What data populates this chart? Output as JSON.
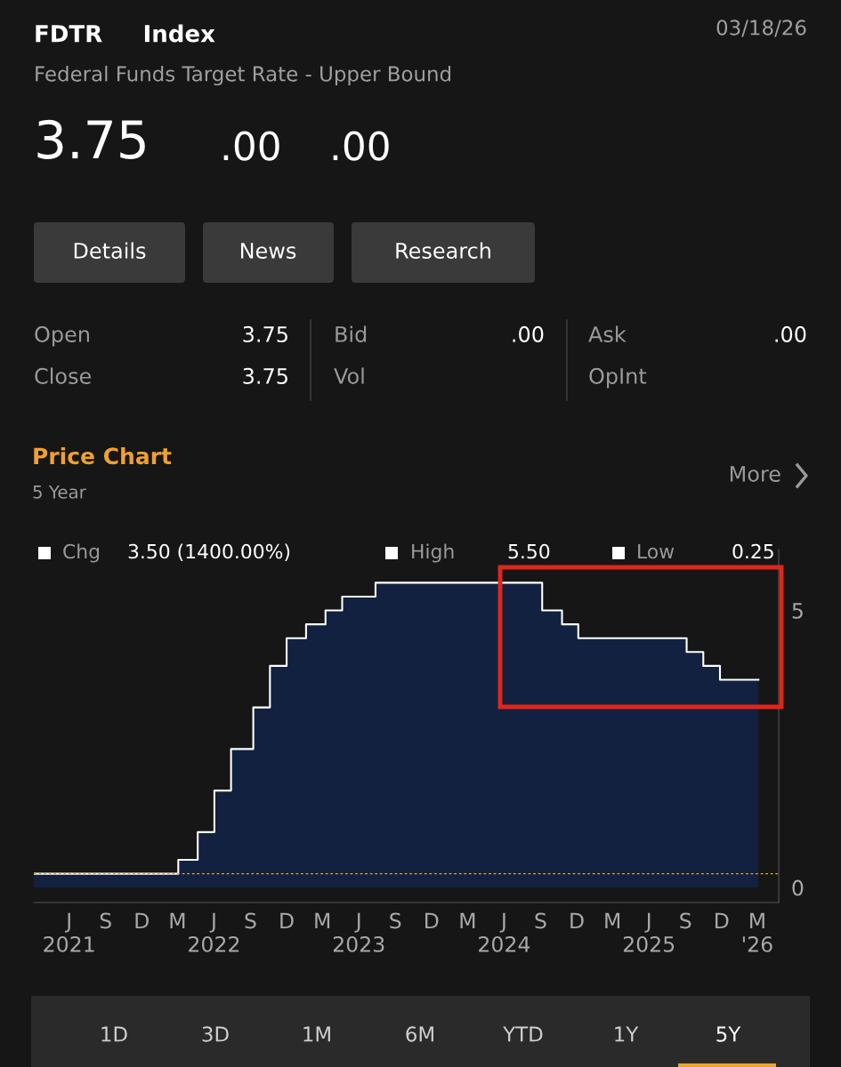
{
  "chart_data": {
    "type": "area",
    "title": "FDTR     Index",
    "subtitle": "Federal Funds Target Rate - Upper Bound",
    "annotations": [
      "03/18/26",
      "3.75",
      ".00",
      ".00",
      "Details",
      "News",
      "Research",
      "Open",
      "3.75",
      "Close",
      "3.75",
      "Bid",
      ".00",
      "Vol",
      "Ask",
      ".00",
      "OpInt",
      "Price Chart",
      "5 Year",
      "More",
      "Chg",
      "3.50 (1400.00%)",
      "High",
      "5.50",
      "Low",
      "0.25",
      "1D",
      "3D",
      "1M",
      "6M",
      "YTD",
      "1Y",
      "5Y"
    ],
    "x": [
      "2021-03-18",
      "2022-03-17",
      "2022-05-05",
      "2022-06-16",
      "2022-07-28",
      "2022-09-22",
      "2022-11-03",
      "2022-12-15",
      "2023-02-02",
      "2023-03-23",
      "2023-05-04",
      "2023-07-27",
      "2024-09-19",
      "2024-11-08",
      "2024-12-19",
      "2025-09-18",
      "2025-10-30",
      "2025-12-11",
      "2026-03-18"
    ],
    "series": [
      {
        "color": "#12213f",
        "values": [
          0.25,
          0.5,
          1.0,
          1.75,
          2.5,
          3.25,
          4.0,
          4.5,
          4.75,
          5.0,
          5.25,
          5.5,
          5.0,
          4.75,
          4.5,
          4.25,
          4.0,
          3.75,
          3.75
        ]
      },
      {
        "type": "step",
        "color": "#ffffff",
        "values": [
          0.25,
          0.5,
          1.0,
          1.75,
          2.5,
          3.25,
          4.0,
          4.5,
          4.75,
          5.0,
          5.25,
          5.5,
          5.0,
          4.75,
          4.5,
          4.25,
          4.0,
          3.75,
          3.75
        ]
      }
    ],
    "xlim": [
      "2021-03-18",
      "2026-05-08"
    ],
    "xticks": [
      {
        "value": "2021-06-15",
        "label": "J\n2021"
      },
      {
        "value": "2021-09-15",
        "label": "S"
      },
      {
        "value": "2021-12-15",
        "label": "D"
      },
      {
        "value": "2022-03-15",
        "label": "M"
      },
      {
        "value": "2022-06-15",
        "label": "J\n2022"
      },
      {
        "value": "2022-09-15",
        "label": "S"
      },
      {
        "value": "2022-12-15",
        "label": "D"
      },
      {
        "value": "2023-03-15",
        "label": "M"
      },
      {
        "value": "2023-06-15",
        "label": "J\n2023"
      },
      {
        "value": "2023-09-15",
        "label": "S"
      },
      {
        "value": "2023-12-15",
        "label": "D"
      },
      {
        "value": "2024-03-15",
        "label": "M"
      },
      {
        "value": "2024-06-15",
        "label": "J\n2024"
      },
      {
        "value": "2024-09-15",
        "label": "S"
      },
      {
        "value": "2024-12-15",
        "label": "D"
      },
      {
        "value": "2025-03-15",
        "label": "M"
      },
      {
        "value": "2025-06-15",
        "label": "J\n2025"
      },
      {
        "value": "2025-09-15",
        "label": "S"
      },
      {
        "value": "2025-12-15",
        "label": "D"
      },
      {
        "value": "2026-03-15",
        "label": "M\n'26"
      }
    ],
    "ylim": [
      -0.27,
      6.1
    ],
    "yticks": [
      0,
      5
    ],
    "ref_lines": [
      {
        "axis": "y",
        "value": 0.25,
        "color": "#e8a530",
        "line_style": "dotted"
      }
    ],
    "grid": false,
    "legend": false
  }
}
